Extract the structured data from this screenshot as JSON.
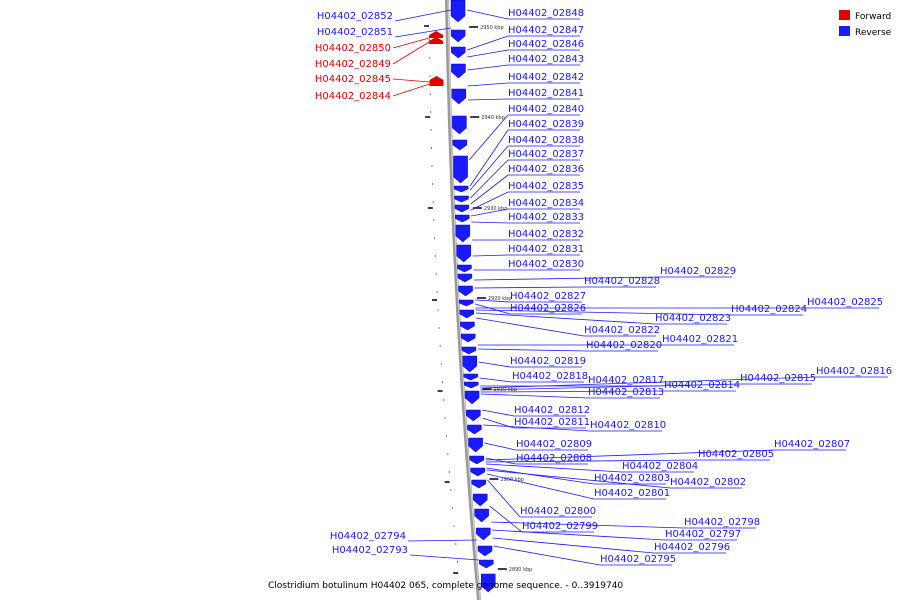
{
  "caption": "Clostridium botulinum H04402 065, complete genome sequence. - 0..3919740",
  "legend": [
    {
      "label": "Forward",
      "color": "#e00000"
    },
    {
      "label": "Reverse",
      "color": "#1a1aff"
    }
  ],
  "colors": {
    "forward": "#e00000",
    "reverse": "#1a1aff",
    "backbone": "#999999"
  },
  "tick_labels": [
    "2950 kbp",
    "2940 kbp",
    "2930 kbp",
    "2920 kbp",
    "2910 kbp",
    "2900 kbp",
    "2890 kbp"
  ],
  "genes_forward": [
    "H04402_02850",
    "H04402_02849",
    "H04402_02845",
    "H04402_02844"
  ],
  "genes_reverse_left": [
    "H04402_02852",
    "H04402_02851",
    "H04402_02794",
    "H04402_02793"
  ],
  "genes_reverse_right": [
    "H04402_02848",
    "H04402_02847",
    "H04402_02846",
    "H04402_02843",
    "H04402_02842",
    "H04402_02841",
    "H04402_02840",
    "H04402_02839",
    "H04402_02838",
    "H04402_02837",
    "H04402_02836",
    "H04402_02835",
    "H04402_02834",
    "H04402_02833",
    "H04402_02832",
    "H04402_02831",
    "H04402_02830",
    "H04402_02829",
    "H04402_02828",
    "H04402_02827",
    "H04402_02826",
    "H04402_02825",
    "H04402_02824",
    "H04402_02823",
    "H04402_02822",
    "H04402_02821",
    "H04402_02820",
    "H04402_02819",
    "H04402_02818",
    "H04402_02817",
    "H04402_02816",
    "H04402_02815",
    "H04402_02814",
    "H04402_02813",
    "H04402_02812",
    "H04402_02811",
    "H04402_02810",
    "H04402_02809",
    "H04402_02808",
    "H04402_02807",
    "H04402_02805",
    "H04402_02804",
    "H04402_02803",
    "H04402_02802",
    "H04402_02801",
    "H04402_02800",
    "H04402_02799",
    "H04402_02798",
    "H04402_02797",
    "H04402_02796",
    "H04402_02795"
  ]
}
